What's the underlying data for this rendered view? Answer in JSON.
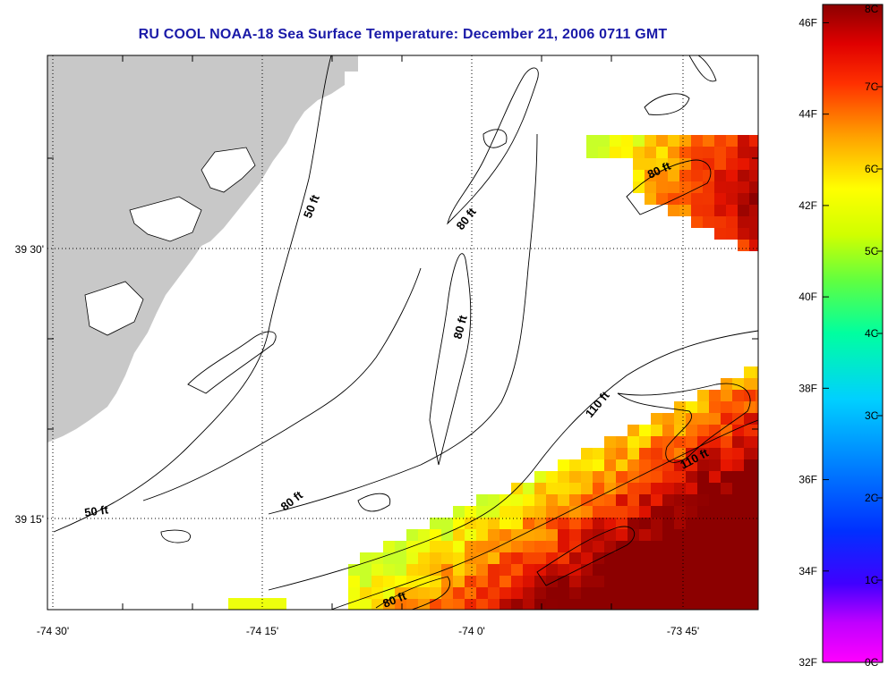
{
  "title": "RU COOL  NOAA-18  Sea Surface Temperature:  December 21, 2006 0711 GMT",
  "axes": {
    "x_ticks": [
      "-74 30'",
      "-74 15'",
      "-74 0'",
      "-73 45'"
    ],
    "y_ticks": [
      "39 30'",
      "39 15'"
    ]
  },
  "depth_labels": [
    "50 ft",
    "80 ft",
    "80 ft",
    "80 ft",
    "110 ft",
    "110 ft",
    "50 ft",
    "80 ft",
    "80 ft"
  ],
  "colorbar": {
    "fahrenheit": [
      "46F",
      "44F",
      "42F",
      "40F",
      "38F",
      "36F",
      "34F",
      "32F"
    ],
    "celsius": [
      "8C",
      "7C",
      "6C",
      "5C",
      "4C",
      "3C",
      "2C",
      "1C",
      "0C"
    ],
    "range_c": [
      0,
      8
    ]
  },
  "colors": {
    "title": "#1a1aa8",
    "land": "#c8c8c8",
    "warm": "#8b0000",
    "cool": "#ffff00"
  }
}
